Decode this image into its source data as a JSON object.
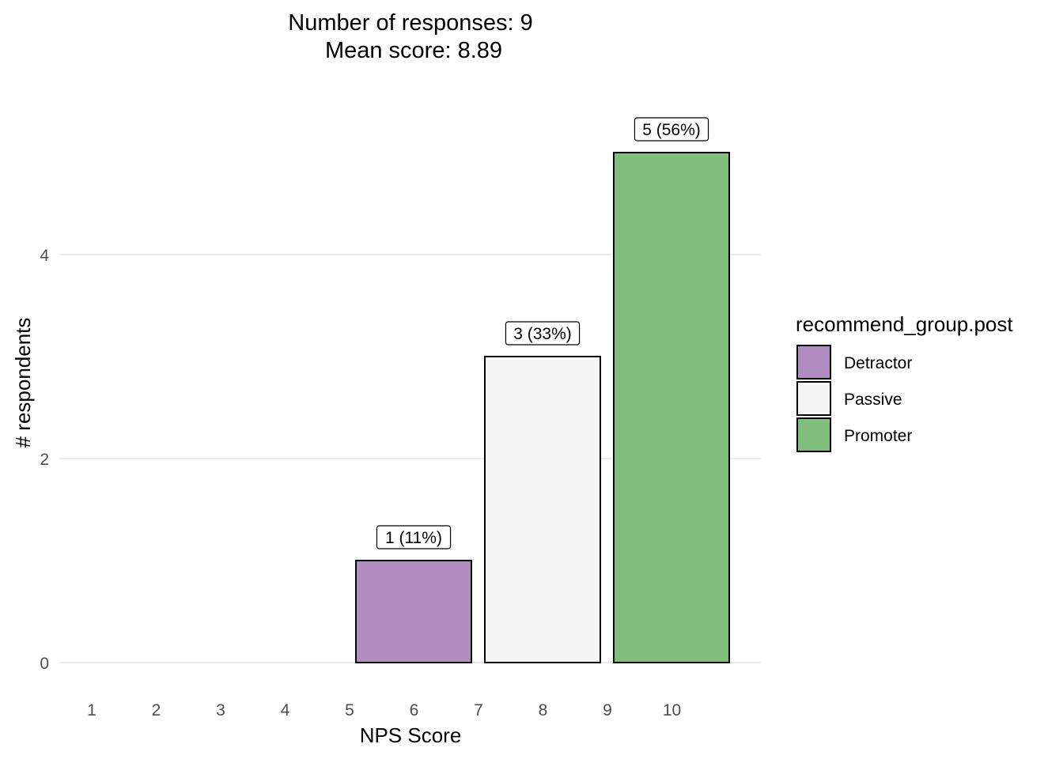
{
  "chart_data": {
    "type": "bar",
    "title_lines": [
      "Number of responses: 9",
      "Mean score: 8.89"
    ],
    "xlabel": "NPS Score",
    "ylabel": "# respondents",
    "x_ticks": [
      "1",
      "2",
      "3",
      "4",
      "5",
      "6",
      "7",
      "8",
      "9",
      "10"
    ],
    "y_ticks": [
      0,
      2,
      4
    ],
    "ylim": [
      0,
      5
    ],
    "grid": true,
    "bars": [
      {
        "score": 6,
        "value": 1,
        "group": "Detractor",
        "label": "1 (11%)"
      },
      {
        "score": 8,
        "value": 3,
        "group": "Passive",
        "label": "3 (33%)"
      },
      {
        "score": 10,
        "value": 5,
        "group": "Promoter",
        "label": "5 (56%)"
      }
    ],
    "legend": {
      "title": "recommend_group.post",
      "placement": "right",
      "items": [
        {
          "name": "Detractor",
          "color": "#b08cc1"
        },
        {
          "name": "Passive",
          "color": "#f5f5f5"
        },
        {
          "name": "Promoter",
          "color": "#80be7b"
        }
      ]
    }
  }
}
